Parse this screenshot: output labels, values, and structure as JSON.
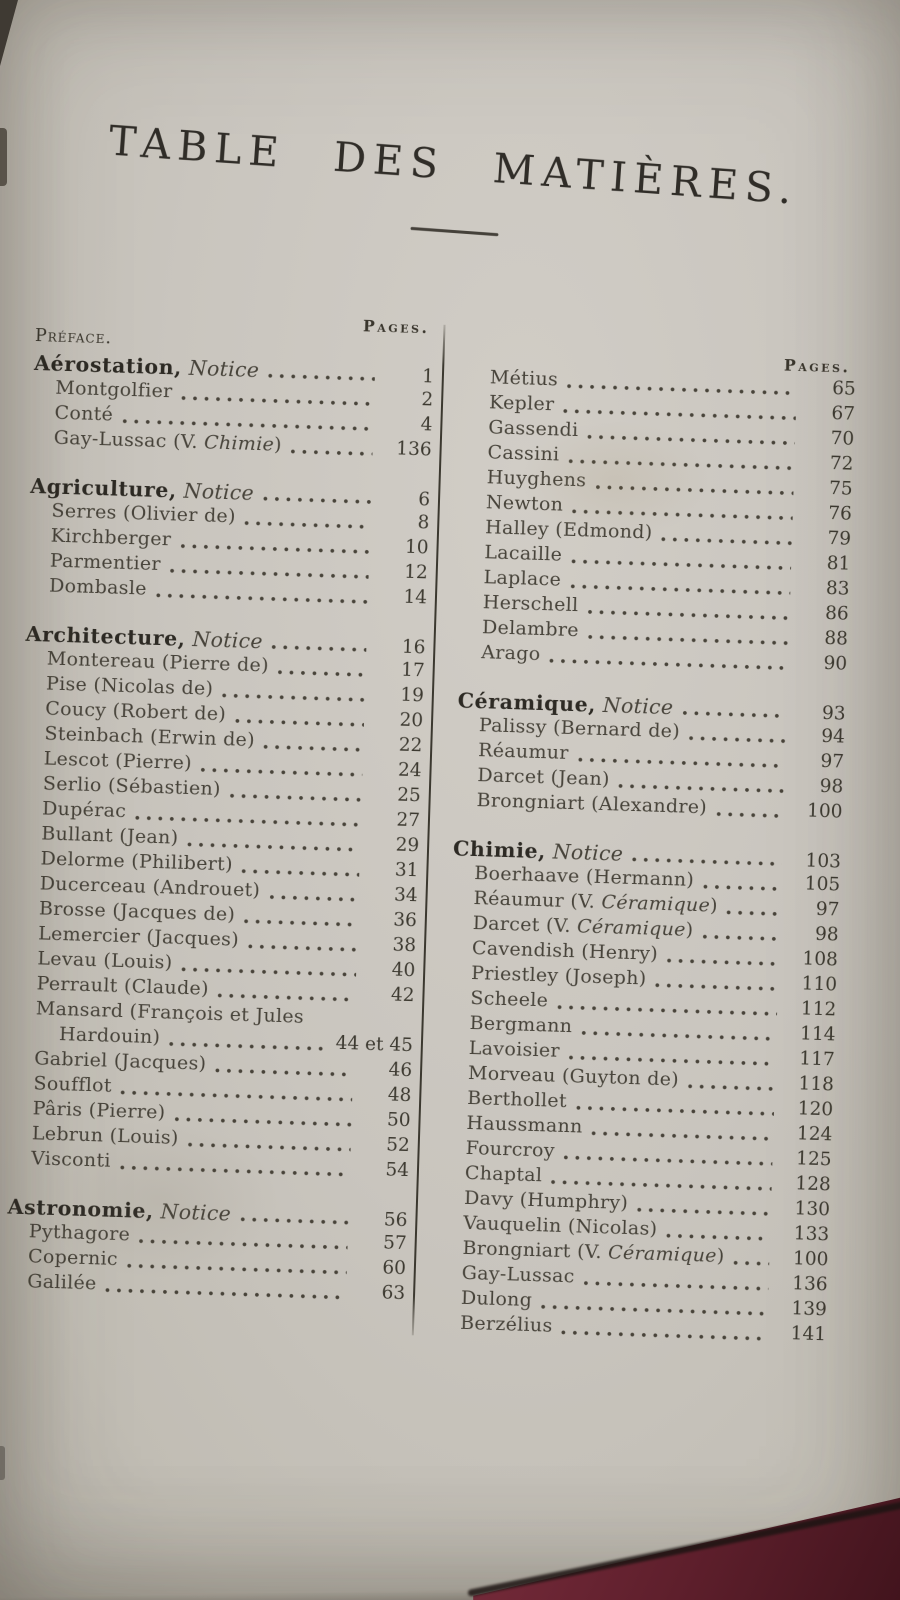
{
  "page": {
    "title": "TABLE DES MATIÈRES.",
    "pages_column_label": "Pages."
  },
  "colors": {
    "paper": "#c9c5be",
    "ink": "#302d28",
    "entry_ink": "#47433a",
    "cover_maroon": "#5e1f2c"
  },
  "toc": {
    "left": {
      "rows": [
        {
          "t": "pages-header",
          "pre": "Pages."
        },
        {
          "t": "plain",
          "pre": "Préface."
        },
        {
          "t": "section",
          "b": "Aérostation,",
          "it": " Notice",
          "page": "1"
        },
        {
          "t": "entry",
          "pre": "Montgolfier",
          "page": "2"
        },
        {
          "t": "entry",
          "pre": "Conté",
          "page": "4"
        },
        {
          "t": "entry",
          "pre": "Gay-Lussac (V. ",
          "it": "Chimie",
          "post": ")",
          "page": "136"
        },
        {
          "t": "gap"
        },
        {
          "t": "section",
          "b": "Agriculture,",
          "it": " Notice",
          "page": "6"
        },
        {
          "t": "entry",
          "pre": "Serres (Olivier de)",
          "page": "8"
        },
        {
          "t": "entry",
          "pre": "Kirchberger",
          "page": "10"
        },
        {
          "t": "entry",
          "pre": "Parmentier",
          "page": "12"
        },
        {
          "t": "entry",
          "pre": "Dombasle",
          "page": "14"
        },
        {
          "t": "gap"
        },
        {
          "t": "section",
          "b": "Architecture,",
          "it": " Notice",
          "page": "16"
        },
        {
          "t": "entry",
          "pre": "Montereau (Pierre de)",
          "page": "17"
        },
        {
          "t": "entry",
          "pre": "Pise (Nicolas de)",
          "page": "19"
        },
        {
          "t": "entry",
          "pre": "Coucy (Robert de)",
          "page": "20"
        },
        {
          "t": "entry",
          "pre": "Steinbach (Erwin de)",
          "page": "22"
        },
        {
          "t": "entry",
          "pre": "Lescot (Pierre)",
          "page": "24"
        },
        {
          "t": "entry",
          "pre": "Serlio (Sébastien)",
          "page": "25"
        },
        {
          "t": "entry",
          "pre": "Dupérac",
          "page": "27"
        },
        {
          "t": "entry",
          "pre": "Bullant (Jean)",
          "page": "29"
        },
        {
          "t": "entry",
          "pre": "Delorme (Philibert)",
          "page": "31"
        },
        {
          "t": "entry",
          "pre": "Ducerceau (Androuet)",
          "page": "34"
        },
        {
          "t": "entry",
          "pre": "Brosse (Jacques de)",
          "page": "36"
        },
        {
          "t": "entry",
          "pre": "Lemercier (Jacques)",
          "page": "38"
        },
        {
          "t": "entry",
          "pre": "Levau (Louis)",
          "page": "40"
        },
        {
          "t": "entry",
          "pre": "Perrault (Claude)",
          "page": "42"
        },
        {
          "t": "entry-nolead",
          "pre": "Mansard (François et Jules"
        },
        {
          "t": "entry-cont",
          "pre": "Hardouin)",
          "page": "44 et 45"
        },
        {
          "t": "entry",
          "pre": "Gabriel (Jacques)",
          "page": "46"
        },
        {
          "t": "entry",
          "pre": "Soufflot",
          "page": "48"
        },
        {
          "t": "entry",
          "pre": "Pâris (Pierre)",
          "page": "50"
        },
        {
          "t": "entry",
          "pre": "Lebrun (Louis)",
          "page": "52"
        },
        {
          "t": "entry",
          "pre": "Visconti",
          "page": "54"
        },
        {
          "t": "gap"
        },
        {
          "t": "section",
          "b": "Astronomie,",
          "it": " Notice",
          "page": "56"
        },
        {
          "t": "entry",
          "pre": "Pythagore",
          "page": "57"
        },
        {
          "t": "entry",
          "pre": "Copernic",
          "page": "60"
        },
        {
          "t": "entry",
          "pre": "Galilée",
          "page": "63"
        }
      ]
    },
    "right": {
      "rows": [
        {
          "t": "pages-header",
          "pre": "Pages."
        },
        {
          "t": "entry",
          "pre": "Métius",
          "page": "65"
        },
        {
          "t": "entry",
          "pre": "Kepler",
          "page": "67"
        },
        {
          "t": "entry",
          "pre": "Gassendi",
          "page": "70"
        },
        {
          "t": "entry",
          "pre": "Cassini",
          "page": "72"
        },
        {
          "t": "entry",
          "pre": "Huyghens",
          "page": "75"
        },
        {
          "t": "entry",
          "pre": "Newton",
          "page": "76"
        },
        {
          "t": "entry",
          "pre": "Halley (Edmond)",
          "page": "79"
        },
        {
          "t": "entry",
          "pre": "Lacaille",
          "page": "81"
        },
        {
          "t": "entry",
          "pre": "Laplace",
          "page": "83"
        },
        {
          "t": "entry",
          "pre": "Herschell",
          "page": "86"
        },
        {
          "t": "entry",
          "pre": "Delambre",
          "page": "88"
        },
        {
          "t": "entry",
          "pre": "Arago",
          "page": "90"
        },
        {
          "t": "gap"
        },
        {
          "t": "section",
          "b": "Céramique,",
          "it": " Notice",
          "page": "93"
        },
        {
          "t": "entry",
          "pre": "Palissy (Bernard de)",
          "page": "94"
        },
        {
          "t": "entry",
          "pre": "Réaumur",
          "page": "97"
        },
        {
          "t": "entry",
          "pre": "Darcet (Jean)",
          "page": "98"
        },
        {
          "t": "entry",
          "pre": "Brongniart (Alexandre)",
          "page": "100"
        },
        {
          "t": "gap"
        },
        {
          "t": "section",
          "b": "Chimie,",
          "it": " Notice",
          "page": "103"
        },
        {
          "t": "entry",
          "pre": "Boerhaave (Hermann)",
          "page": "105"
        },
        {
          "t": "entry",
          "pre": "Réaumur (V. ",
          "it": "Céramique",
          "post": ")",
          "page": "97"
        },
        {
          "t": "entry",
          "pre": "Darcet (V. ",
          "it": "Céramique",
          "post": ")",
          "page": "98"
        },
        {
          "t": "entry",
          "pre": "Cavendish (Henry)",
          "page": "108"
        },
        {
          "t": "entry",
          "pre": "Priestley (Joseph)",
          "page": "110"
        },
        {
          "t": "entry",
          "pre": "Scheele",
          "page": "112"
        },
        {
          "t": "entry",
          "pre": "Bergmann",
          "page": "114"
        },
        {
          "t": "entry",
          "pre": "Lavoisier",
          "page": "117"
        },
        {
          "t": "entry",
          "pre": "Morveau (Guyton de)",
          "page": "118"
        },
        {
          "t": "entry",
          "pre": "Berthollet",
          "page": "120"
        },
        {
          "t": "entry",
          "pre": "Haussmann",
          "page": "124"
        },
        {
          "t": "entry",
          "pre": "Fourcroy",
          "page": "125"
        },
        {
          "t": "entry",
          "pre": "Chaptal",
          "page": "128"
        },
        {
          "t": "entry",
          "pre": "Davy (Humphry)",
          "page": "130"
        },
        {
          "t": "entry",
          "pre": "Vauquelin (Nicolas)",
          "page": "133"
        },
        {
          "t": "entry",
          "pre": "Brongniart (V. ",
          "it": "Céramique",
          "post": ")",
          "page": "100"
        },
        {
          "t": "entry",
          "pre": "Gay-Lussac",
          "page": "136"
        },
        {
          "t": "entry",
          "pre": "Dulong",
          "page": "139"
        },
        {
          "t": "entry",
          "pre": "Berzélius",
          "page": "141"
        }
      ]
    }
  }
}
